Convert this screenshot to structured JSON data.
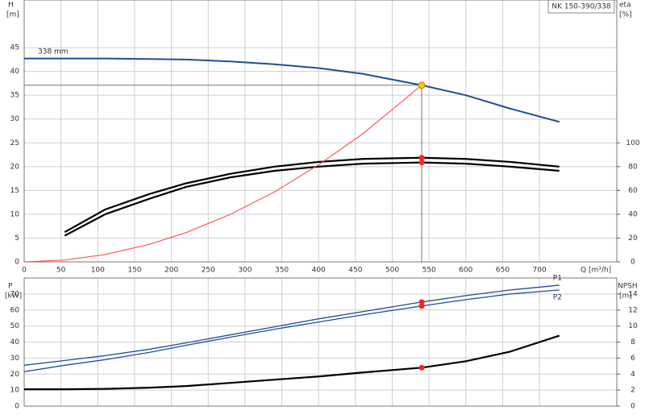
{
  "chart_data": [
    {
      "type": "line",
      "model": "NK 150-390/338",
      "y_label": "H",
      "y_unit": "[m]",
      "y2_label": "eta",
      "y2_unit": "[%]",
      "x_label": "Q [m³/h]",
      "annotation": "338 mm",
      "x": [
        0,
        55,
        110,
        170,
        220,
        280,
        340,
        400,
        460,
        540,
        600,
        660,
        727
      ],
      "xlim": [
        0,
        805
      ],
      "xticks": [
        0,
        50,
        100,
        150,
        200,
        250,
        300,
        350,
        400,
        450,
        500,
        550,
        600,
        650,
        700
      ],
      "ylim": [
        0,
        55
      ],
      "yticks": [
        0,
        5,
        10,
        15,
        20,
        25,
        30,
        35,
        40,
        45
      ],
      "y2lim": [
        0,
        220
      ],
      "y2ticks": [
        0,
        20,
        40,
        60,
        80,
        100
      ],
      "grid": true,
      "duty_point": {
        "x": 540,
        "y": 37.1
      },
      "series": [
        {
          "color": "#1f4e96",
          "values": [
            42.7,
            42.7,
            42.7,
            42.6,
            42.5,
            42.1,
            41.5,
            40.7,
            39.5,
            37.1,
            35.0,
            32.2,
            29.4
          ]
        },
        {
          "color": "#000000",
          "axis": "y2",
          "values": [
            null,
            25,
            44,
            57,
            66,
            74,
            80,
            84,
            86.5,
            87.5,
            86.5,
            84,
            80
          ]
        },
        {
          "color": "#000000",
          "axis": "y2",
          "values": [
            null,
            22,
            40,
            53,
            63,
            71,
            76.5,
            80,
            82.5,
            83.5,
            82.5,
            80,
            76.5
          ]
        },
        {
          "color": "#ff4040",
          "values": [
            0,
            0.38,
            1.54,
            3.68,
            6.16,
            9.97,
            14.7,
            20.4,
            26.9,
            37.1,
            null,
            null,
            null
          ]
        }
      ]
    },
    {
      "type": "line",
      "y_label": "P",
      "y_unit": "[kW]",
      "y2_label": "NPSH",
      "y2_unit": "[m]",
      "x": [
        0,
        55,
        110,
        170,
        220,
        280,
        340,
        400,
        460,
        540,
        600,
        660,
        727
      ],
      "ylim": [
        0,
        80
      ],
      "yticks": [
        0,
        10,
        20,
        30,
        40,
        50,
        60,
        70
      ],
      "y2lim": [
        0,
        16
      ],
      "y2ticks": [
        0,
        2,
        4,
        6,
        8,
        10,
        12,
        14
      ],
      "grid": true,
      "duty_point": {
        "x": 540
      },
      "series": [
        {
          "name": "P1",
          "color": "#1f4e96",
          "values": [
            25.5,
            28.5,
            31.5,
            35.5,
            39.5,
            44.5,
            49.5,
            54.5,
            59,
            65,
            69,
            72.5,
            75.5
          ]
        },
        {
          "name": "P2",
          "color": "#1f4e96",
          "values": [
            21.5,
            25.5,
            29,
            33.5,
            38,
            43,
            48,
            52.5,
            57,
            62.5,
            66.5,
            70,
            72.5
          ]
        },
        {
          "color": "#000000",
          "axis": "y2",
          "values": [
            2.1,
            2.1,
            2.15,
            2.3,
            2.5,
            2.9,
            3.3,
            3.7,
            4.2,
            4.8,
            5.6,
            6.8,
            8.8
          ]
        }
      ]
    }
  ]
}
